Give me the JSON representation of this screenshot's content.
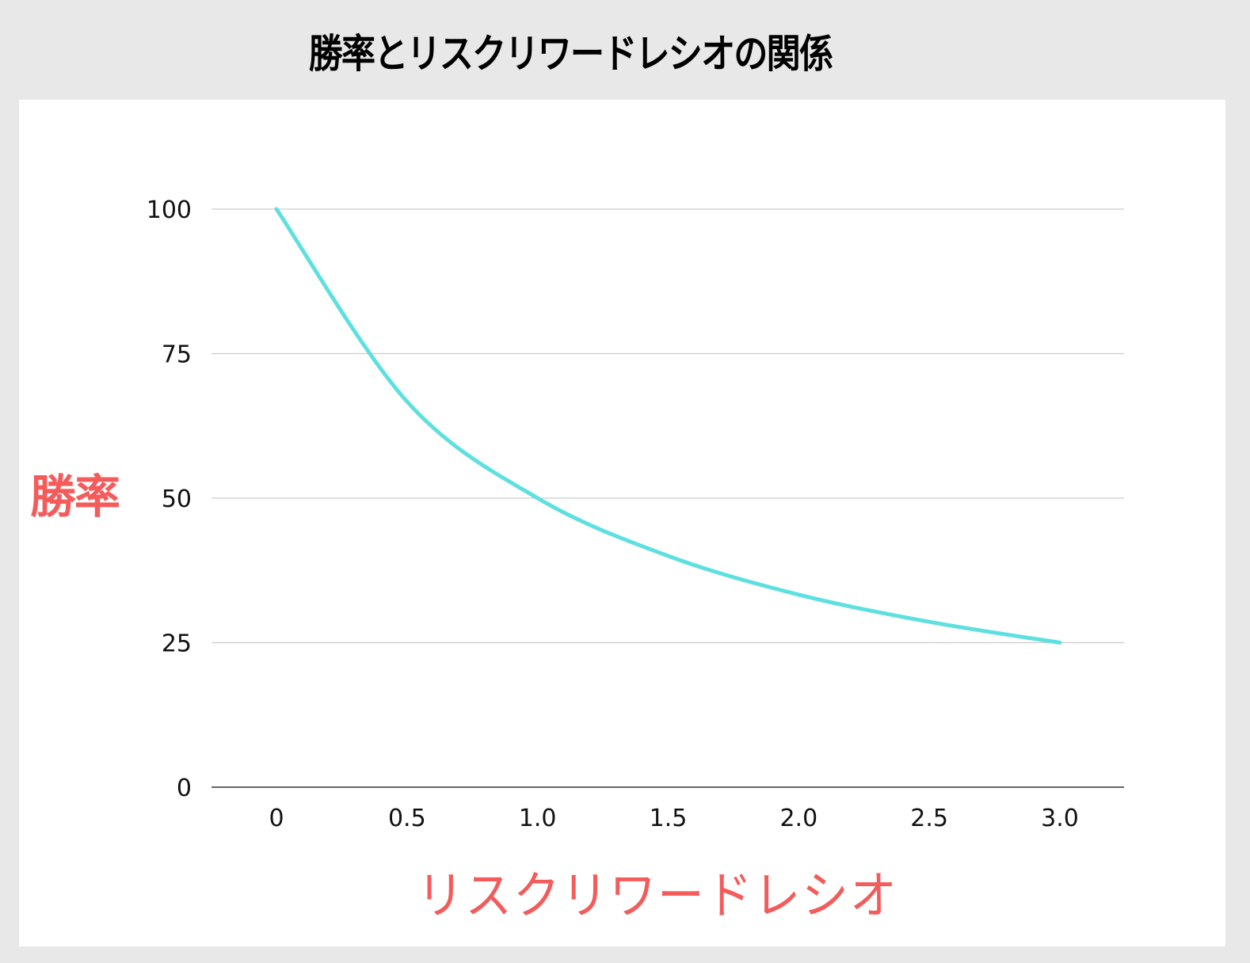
{
  "title": "勝率とリスクリワードレシオの関係",
  "axes": {
    "ylabel": "勝率",
    "xlabel": "リスクリワードレシオ",
    "y_ticks": [
      "0",
      "25",
      "50",
      "75",
      "100"
    ],
    "x_ticks": [
      "0",
      "0.5",
      "1.0",
      "1.5",
      "2.0",
      "2.5",
      "3.0"
    ]
  },
  "colors": {
    "line": "#5ee0e0",
    "label": "#f45b5b",
    "grid": "#cccccc",
    "axis": "#666666",
    "background": "#e8e8e8",
    "panel": "#ffffff"
  },
  "chart_data": {
    "type": "line",
    "title": "勝率とリスクリワードレシオの関係",
    "xlabel": "リスクリワードレシオ",
    "ylabel": "勝率",
    "x": [
      0,
      0.5,
      1.0,
      1.5,
      2.0,
      2.5,
      3.0
    ],
    "series": [
      {
        "name": "勝率",
        "values": [
          100,
          66.7,
          50,
          40,
          33.3,
          28.6,
          25
        ]
      }
    ],
    "xlim": [
      0,
      3.0
    ],
    "ylim": [
      0,
      100
    ],
    "y_ticks": [
      0,
      25,
      50,
      75,
      100
    ],
    "x_ticks": [
      0,
      0.5,
      1.0,
      1.5,
      2.0,
      2.5,
      3.0
    ],
    "grid": true,
    "legend": "none"
  }
}
